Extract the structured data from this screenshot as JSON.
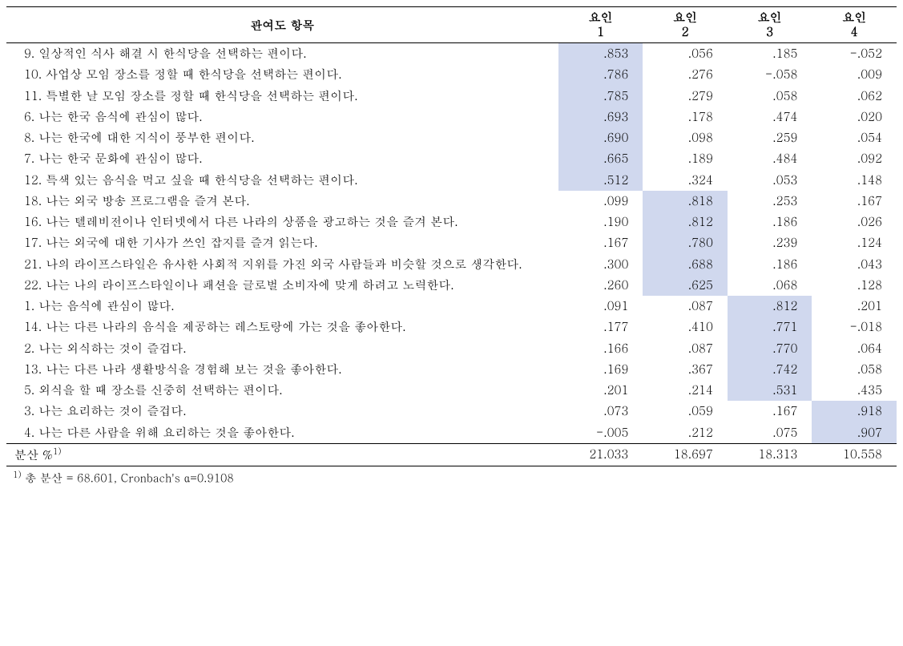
{
  "header": {
    "item_label": "관여도 항목",
    "factor_labels": [
      "요인\n1",
      "요인\n2",
      "요인\n3",
      "요인\n4"
    ]
  },
  "rows": [
    {
      "num": "9.",
      "text": "일상적인 식사 해결 시 한식당을 선택하는 편이다.",
      "v": [
        ".853",
        ".056",
        ".185",
        "-.052"
      ],
      "hl": 0
    },
    {
      "num": "10.",
      "text": "사업상 모임 장소를 정할 때 한식당을 선택하는 편이다.",
      "v": [
        ".786",
        ".276",
        "-.058",
        ".009"
      ],
      "hl": 0
    },
    {
      "num": "11.",
      "text": "특별한 날 모임 장소를 정할 때 한식당을 선택하는 편이다.",
      "v": [
        ".785",
        ".279",
        ".058",
        ".062"
      ],
      "hl": 0
    },
    {
      "num": "6.",
      "text": "나는 한국 음식에 관심이 많다.",
      "v": [
        ".693",
        ".178",
        ".474",
        ".020"
      ],
      "hl": 0
    },
    {
      "num": "8.",
      "text": "나는 한국에 대한 지식이 풍부한 편이다.",
      "v": [
        ".690",
        ".098",
        ".259",
        ".054"
      ],
      "hl": 0
    },
    {
      "num": "7.",
      "text": "나는 한국 문화에 관심이 많다.",
      "v": [
        ".665",
        ".189",
        ".484",
        ".092"
      ],
      "hl": 0
    },
    {
      "num": "12.",
      "text": "특색 있는 음식을 먹고 싶을 때 한식당을 선택하는 편이다.",
      "v": [
        ".512",
        ".324",
        ".053",
        ".148"
      ],
      "hl": 0
    },
    {
      "num": "18.",
      "text": "나는 외국 방송 프로그램을 즐겨 본다.",
      "v": [
        ".099",
        ".818",
        ".253",
        ".167"
      ],
      "hl": 1
    },
    {
      "num": "16.",
      "text": "나는 텔레비전이나 인터넷에서 다른 나라의 상품을 광고하는 것을 즐겨 본다.",
      "v": [
        ".190",
        ".812",
        ".186",
        ".026"
      ],
      "hl": 1
    },
    {
      "num": "17.",
      "text": "나는 외국에 대한 기사가 쓰인 잡지를 즐겨 읽는다.",
      "v": [
        ".167",
        ".780",
        ".239",
        ".124"
      ],
      "hl": 1
    },
    {
      "num": "21.",
      "text": "나의 라이프스타일은 유사한 사회적 지위를 가진 외국 사람들과 비슷할 것으로 생각한다.",
      "v": [
        ".300",
        ".688",
        ".186",
        ".043"
      ],
      "hl": 1
    },
    {
      "num": "22.",
      "text": "나는 나의 라이프스타일이나 패션을 글로벌 소비자에 맞게 하려고 노력한다.",
      "v": [
        ".260",
        ".625",
        ".068",
        ".128"
      ],
      "hl": 1
    },
    {
      "num": "1.",
      "text": "나는 음식에 관심이 많다.",
      "v": [
        ".091",
        ".087",
        ".812",
        ".201"
      ],
      "hl": 2
    },
    {
      "num": "14.",
      "text": "나는 다른 나라의 음식을 제공하는 레스토랑에 가는 것을 좋아한다.",
      "v": [
        ".177",
        ".410",
        ".771",
        "-.018"
      ],
      "hl": 2
    },
    {
      "num": "2.",
      "text": "나는 외식하는 것이 즐겁다.",
      "v": [
        ".166",
        ".087",
        ".770",
        ".064"
      ],
      "hl": 2
    },
    {
      "num": "13.",
      "text": "나는 다른 나라 생활방식을 경험해 보는 것을 좋아한다.",
      "v": [
        ".169",
        ".367",
        ".742",
        ".058"
      ],
      "hl": 2
    },
    {
      "num": "5.",
      "text": "외식을 할 때 장소를 신중히 선택하는 편이다.",
      "v": [
        ".201",
        ".214",
        ".531",
        ".435"
      ],
      "hl": 2
    },
    {
      "num": "3.",
      "text": "나는 요리하는 것이 즐겁다.",
      "v": [
        ".073",
        ".059",
        ".167",
        ".918"
      ],
      "hl": 3
    },
    {
      "num": "4.",
      "text": "나는 다른 사람을 위해 요리하는 것을 좋아한다.",
      "v": [
        "-.005",
        ".212",
        ".075",
        ".907"
      ],
      "hl": 3
    }
  ],
  "variance": {
    "label": "분산 %",
    "sup": "1)",
    "v": [
      "21.033",
      "18.697",
      "18.313",
      "10.558"
    ]
  },
  "footnote": {
    "sup": "1)",
    "text": " 총 분산 = 68.601, Cronbach's α=0.9108"
  }
}
